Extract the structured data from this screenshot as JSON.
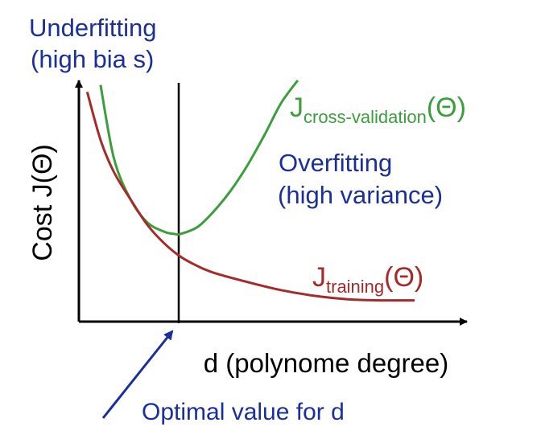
{
  "chart_data": {
    "type": "line",
    "title": "",
    "xlabel": "d (polynome degree)",
    "ylabel": "Cost J(Θ)",
    "x_ticks": [],
    "y_ticks": [],
    "grid": false,
    "legend": "none",
    "series": [
      {
        "name": "J_training(Θ)",
        "label_main": "J",
        "label_sub": "training",
        "label_suffix": "(Θ)",
        "color": "#a52a2a",
        "shape": "monotonically decreasing toward a low plateau",
        "x": [
          0.02,
          0.06,
          0.1,
          0.15,
          0.2,
          0.25,
          0.3,
          0.35,
          0.4,
          0.5,
          0.6,
          0.7,
          0.8,
          0.9,
          1.0
        ],
        "y": [
          0.95,
          0.74,
          0.6,
          0.48,
          0.37,
          0.29,
          0.23,
          0.19,
          0.16,
          0.12,
          0.085,
          0.06,
          0.045,
          0.04,
          0.04
        ]
      },
      {
        "name": "J_cross-validation(Θ)",
        "label_main": "J",
        "label_sub": "cross-validation",
        "label_suffix": "(Θ)",
        "color": "#3a9e3a",
        "shape": "U-shaped with minimum at the optimal d",
        "x": [
          0.06,
          0.1,
          0.15,
          0.2,
          0.25,
          0.28,
          0.3,
          0.35,
          0.4,
          0.45,
          0.5,
          0.55,
          0.6,
          0.65
        ],
        "y": [
          0.98,
          0.66,
          0.48,
          0.38,
          0.34,
          0.33,
          0.33,
          0.36,
          0.43,
          0.52,
          0.63,
          0.76,
          0.9,
          1.0
        ]
      }
    ],
    "annotations": [
      {
        "text_lines": [
          "Underfitting",
          "(high bia s)"
        ],
        "color": "#1a2f9a"
      },
      {
        "text_lines": [
          "Overfitting",
          "(high variance)"
        ],
        "color": "#1a2f9a"
      },
      {
        "text": "Optimal value for d",
        "color": "#1a2f9a",
        "arrow_to": "x-axis at optimal d"
      }
    ],
    "optimal_d_fraction": 0.28
  },
  "colors": {
    "axis": "#000000",
    "annotation": "#1a2f9a",
    "training": "#a52a2a",
    "cv": "#3a9e3a"
  }
}
